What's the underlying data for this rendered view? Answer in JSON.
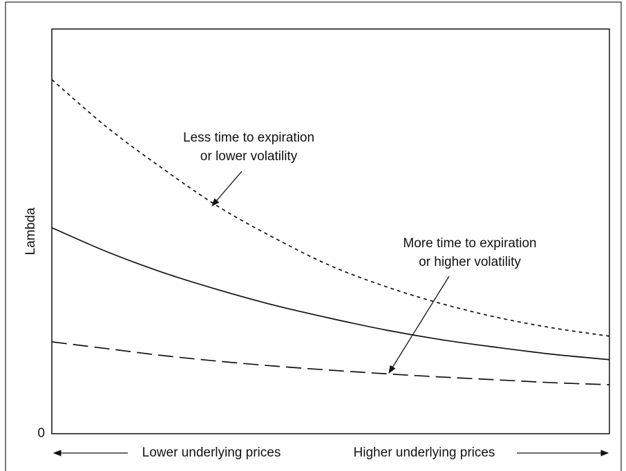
{
  "chart_data": {
    "type": "line",
    "ylabel": "Lambda",
    "xlabel_left": "Lower underlying prices",
    "xlabel_right": "Higher underlying prices",
    "x": [
      0,
      1,
      2,
      3,
      4,
      5,
      6,
      7,
      8,
      9,
      10
    ],
    "xlim": [
      0,
      10
    ],
    "ylim": [
      0,
      100
    ],
    "yticks": [
      0
    ],
    "series": [
      {
        "color": "#111111",
        "style": "dotted",
        "values": [
          87.5,
          75.6,
          65.4,
          56.0,
          48.3,
          41.5,
          36.3,
          32.1,
          28.7,
          26.1,
          24.1
        ]
      },
      {
        "color": "#111111",
        "style": "solid",
        "values": [
          50.9,
          44.9,
          39.8,
          35.5,
          31.7,
          28.5,
          25.6,
          23.2,
          21.3,
          19.6,
          18.3
        ]
      },
      {
        "color": "#111111",
        "style": "dashed",
        "values": [
          22.7,
          21.0,
          19.3,
          17.9,
          16.7,
          15.7,
          14.8,
          14.0,
          13.3,
          12.6,
          12.1
        ]
      }
    ],
    "annotations": [
      {
        "lines": [
          "Less time to expiration",
          "or lower volatility"
        ]
      },
      {
        "lines": [
          "More time to expiration",
          "or higher volatility"
        ]
      }
    ]
  }
}
